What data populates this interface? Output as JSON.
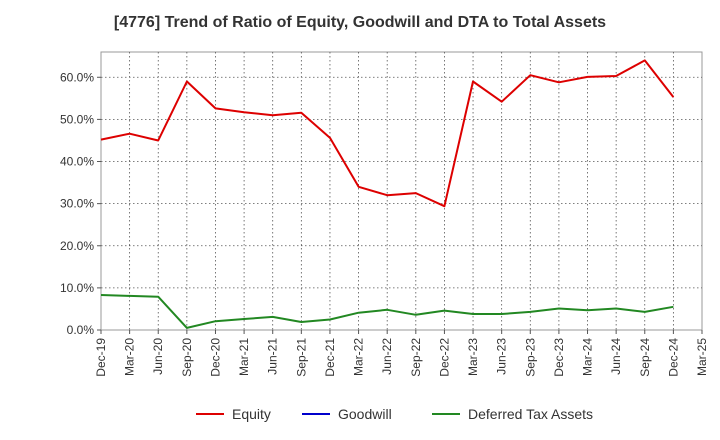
{
  "chart_data": {
    "type": "line",
    "title": "[4776]  Trend of Ratio of Equity, Goodwill and DTA to Total Assets",
    "categories": [
      "Dec-19",
      "Mar-20",
      "Jun-20",
      "Sep-20",
      "Dec-20",
      "Mar-21",
      "Jun-21",
      "Sep-21",
      "Dec-21",
      "Mar-22",
      "Jun-22",
      "Sep-22",
      "Dec-22",
      "Mar-23",
      "Jun-23",
      "Sep-23",
      "Dec-23",
      "Mar-24",
      "Jun-24",
      "Sep-24",
      "Dec-24",
      "Mar-25"
    ],
    "series": [
      {
        "name": "Equity",
        "color": "#dd0000",
        "values": [
          45.2,
          46.6,
          45.0,
          59.0,
          52.6,
          51.7,
          51.0,
          51.6,
          45.6,
          34.0,
          32.0,
          32.5,
          29.4,
          59.0,
          54.2,
          60.5,
          58.8,
          60.1,
          60.3,
          64.0,
          55.3,
          null
        ]
      },
      {
        "name": "Goodwill",
        "color": "#0000cc",
        "values": [
          null,
          null,
          null,
          null,
          null,
          null,
          null,
          null,
          null,
          null,
          null,
          null,
          null,
          null,
          null,
          null,
          null,
          null,
          null,
          null,
          null,
          null
        ]
      },
      {
        "name": "Deferred Tax Assets",
        "color": "#228822",
        "values": [
          8.3,
          8.1,
          7.9,
          0.5,
          2.1,
          2.6,
          3.1,
          1.9,
          2.5,
          4.1,
          4.8,
          3.6,
          4.6,
          3.8,
          3.8,
          4.3,
          5.1,
          4.7,
          5.1,
          4.3,
          5.5,
          null
        ]
      }
    ],
    "yticks": [
      "0.0%",
      "10.0%",
      "20.0%",
      "30.0%",
      "40.0%",
      "50.0%",
      "60.0%"
    ],
    "ylim": [
      0,
      66
    ],
    "grid": true,
    "legend_position": "bottom"
  }
}
